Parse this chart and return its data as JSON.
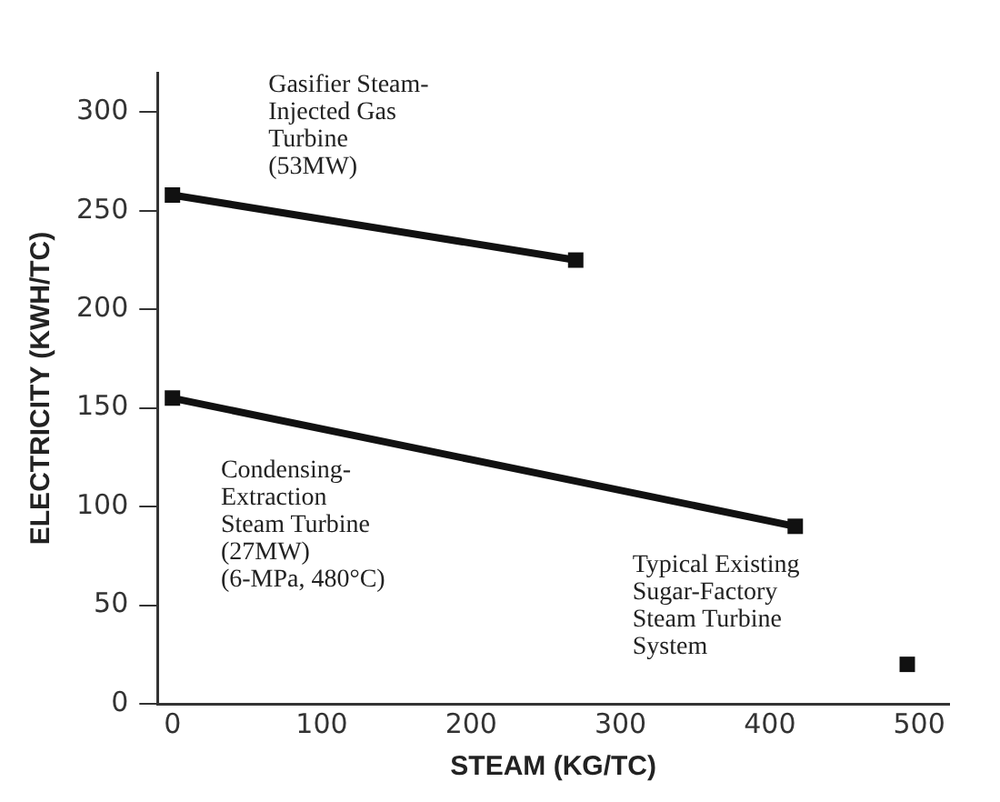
{
  "chart_data": {
    "type": "line",
    "xlabel": "STEAM (KG/TC)",
    "ylabel": "ELECTRICITY (KWH/TC)",
    "xlim": [
      -10,
      520
    ],
    "xticks": [
      0,
      100,
      200,
      300,
      400,
      500
    ],
    "ylim": [
      0,
      320
    ],
    "yticks": [
      0,
      50,
      100,
      150,
      200,
      250,
      300
    ],
    "grid": false,
    "legend": false,
    "marker": "square",
    "line_style": "solid",
    "series": [
      {
        "color": "#111111",
        "x": [
          0,
          270
        ],
        "values": [
          258,
          225
        ]
      },
      {
        "color": "#111111",
        "x": [
          0,
          417
        ],
        "values": [
          155,
          90
        ]
      },
      {
        "type": "scatter",
        "color": "#111111",
        "x": [
          492
        ],
        "values": [
          20
        ]
      }
    ],
    "annotations": [
      "Gasifier Steam-\nInjected Gas\nTurbine\n(53MW)",
      "Condensing-\nExtraction\nSteam Turbine\n(27MW)\n(6-MPa, 480°C)",
      "Typical Existing\nSugar-Factory\nSteam Turbine\nSystem"
    ]
  }
}
